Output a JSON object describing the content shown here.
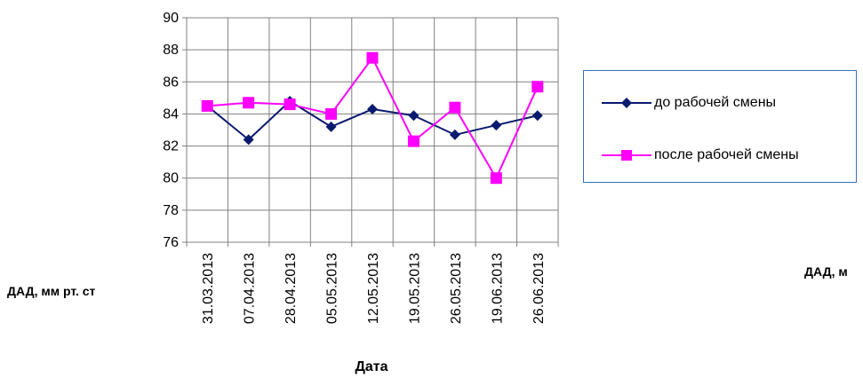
{
  "chart_data": {
    "type": "line",
    "categories": [
      "31.03.2013",
      "07.04.2013",
      "28.04.2013",
      "05.05.2013",
      "12.05.2013",
      "19.05.2013",
      "26.05.2013",
      "19.06.2013",
      "26.06.2013"
    ],
    "series": [
      {
        "name": "до рабочей смены",
        "color": "#0a1a6e",
        "marker": "diamond",
        "values": [
          84.5,
          82.4,
          84.8,
          83.2,
          84.3,
          83.9,
          82.7,
          83.3,
          83.9
        ]
      },
      {
        "name": "после рабочей смены",
        "color": "#ff00ff",
        "marker": "square",
        "values": [
          84.5,
          84.7,
          84.6,
          84.0,
          87.5,
          82.3,
          84.4,
          80.0,
          85.7
        ]
      }
    ],
    "ylim": [
      76,
      90
    ],
    "yticks": [
      76,
      78,
      80,
      82,
      84,
      86,
      88,
      90
    ],
    "xlabel": "Дата",
    "ylabel_left": "ДАД, мм рт. ст",
    "ylabel_right": "ДАД, м",
    "grid": true,
    "legend_position": "right"
  }
}
